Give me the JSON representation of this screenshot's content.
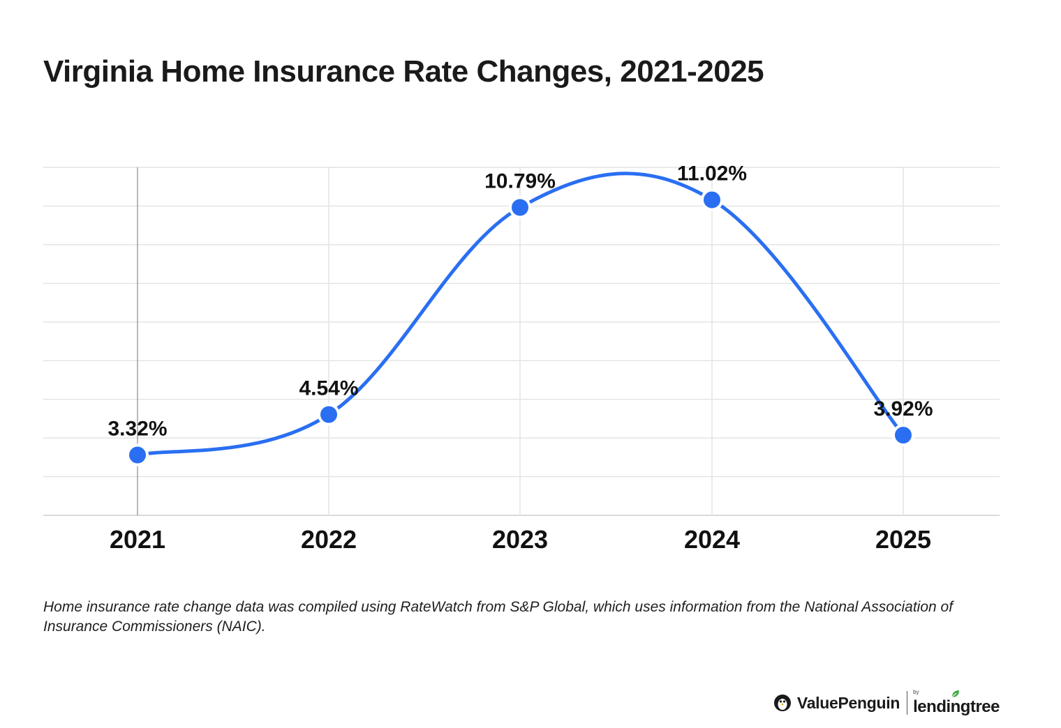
{
  "chart_data": {
    "type": "line",
    "title": "Virginia Home Insurance Rate Changes, 2021-2025",
    "categories": [
      "2021",
      "2022",
      "2023",
      "2024",
      "2025"
    ],
    "series": [
      {
        "values": [
          3.32,
          4.54,
          10.79,
          11.02,
          3.92
        ],
        "labels": [
          "3.32%",
          "4.54%",
          "10.79%",
          "11.02%",
          "3.92%"
        ],
        "color": "#2a6ff2"
      }
    ],
    "xlabel": "",
    "ylabel": "",
    "ylim": [
      1.5,
      12
    ],
    "grid": true,
    "legend": "none"
  },
  "footnote": "Home insurance rate change data was compiled using RateWatch from S&P Global, which uses information from the National Association of Insurance Commissioners (NAIC).",
  "branding": {
    "primary": "ValuePenguin",
    "by": "by",
    "secondary": "lendingtree",
    "icons": [
      "penguin-icon",
      "leaf-icon"
    ]
  }
}
